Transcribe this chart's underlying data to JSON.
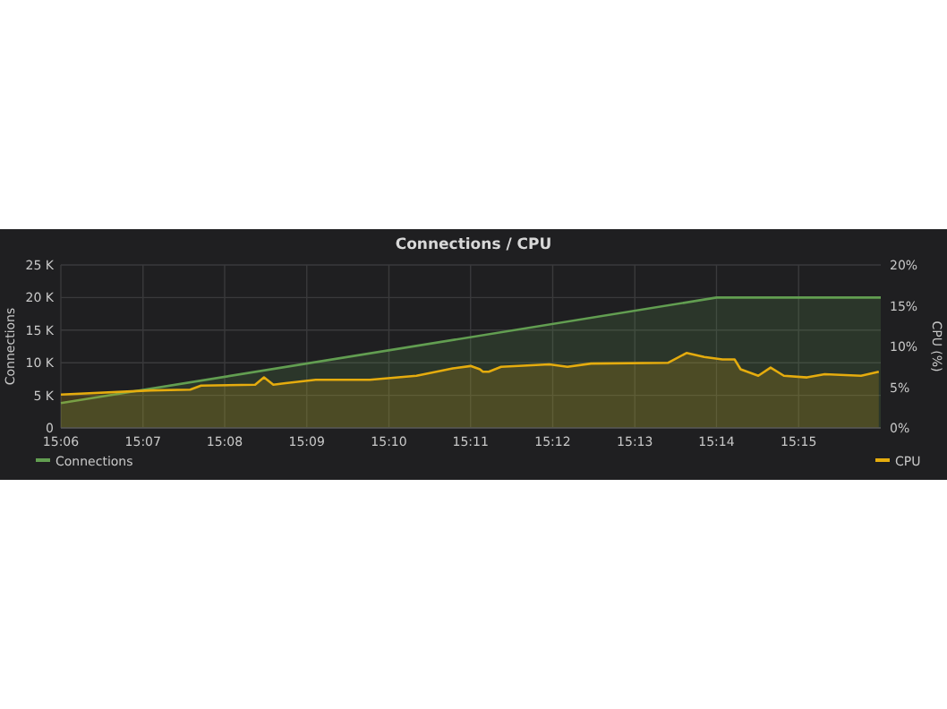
{
  "chart_data": {
    "type": "area",
    "title": "Connections / CPU",
    "ylabel": "Connections",
    "y2label": "CPU (%)",
    "xlim": [
      15.1,
      15.2667
    ],
    "xticks": [
      {
        "value": 15.1,
        "label": "15:06"
      },
      {
        "value": 15.1167,
        "label": "15:07"
      },
      {
        "value": 15.1333,
        "label": "15:08"
      },
      {
        "value": 15.15,
        "label": "15:09"
      },
      {
        "value": 15.1667,
        "label": "15:10"
      },
      {
        "value": 15.1833,
        "label": "15:11"
      },
      {
        "value": 15.2,
        "label": "15:12"
      },
      {
        "value": 15.2167,
        "label": "15:13"
      },
      {
        "value": 15.2333,
        "label": "15:14"
      },
      {
        "value": 15.25,
        "label": "15:15"
      }
    ],
    "ylim": [
      0,
      25000
    ],
    "yticks": [
      0,
      {
        "value": 5000,
        "label": "5 K"
      },
      {
        "value": 10000,
        "label": "10 K"
      },
      {
        "value": 15000,
        "label": "15 K"
      },
      {
        "value": 20000,
        "label": "20 K"
      },
      {
        "value": 25000,
        "label": "25 K"
      }
    ],
    "y2lim": [
      0,
      20
    ],
    "y2ticks": [
      {
        "value": 0,
        "label": "0%"
      },
      {
        "value": 5,
        "label": "5%"
      },
      {
        "value": 10,
        "label": "10%"
      },
      {
        "value": 15,
        "label": "15%"
      },
      {
        "value": 20,
        "label": "20%"
      }
    ],
    "grid": true,
    "legend": "bottom",
    "series": [
      {
        "name": "Connections",
        "color": "#629e51",
        "x": [
          15.1,
          15.2333,
          15.2667
        ],
        "values": [
          3800,
          20000,
          20000
        ]
      },
      {
        "name": "CPU",
        "color": "#e5ac0e",
        "axis": "y2",
        "x": [
          15.1,
          15.1183,
          15.1263,
          15.1285,
          15.1395,
          15.1413,
          15.1432,
          15.1457,
          15.1518,
          15.1628,
          15.1723,
          15.1797,
          15.1833,
          15.1852,
          15.1858,
          15.187,
          15.1895,
          15.1993,
          15.203,
          15.2078,
          15.2235,
          15.2272,
          15.2308,
          15.2345,
          15.237,
          15.2382,
          15.2418,
          15.2443,
          15.247,
          15.2517,
          15.2553,
          15.2627,
          15.2663
        ],
        "values": [
          4.1,
          4.6,
          4.7,
          5.2,
          5.3,
          6.2,
          5.3,
          5.5,
          5.9,
          5.9,
          6.4,
          7.3,
          7.6,
          7.2,
          6.9,
          6.9,
          7.5,
          7.8,
          7.5,
          7.9,
          8.0,
          9.2,
          8.7,
          8.4,
          8.4,
          7.2,
          6.4,
          7.4,
          6.4,
          6.2,
          6.6,
          6.4,
          6.9
        ]
      }
    ]
  }
}
